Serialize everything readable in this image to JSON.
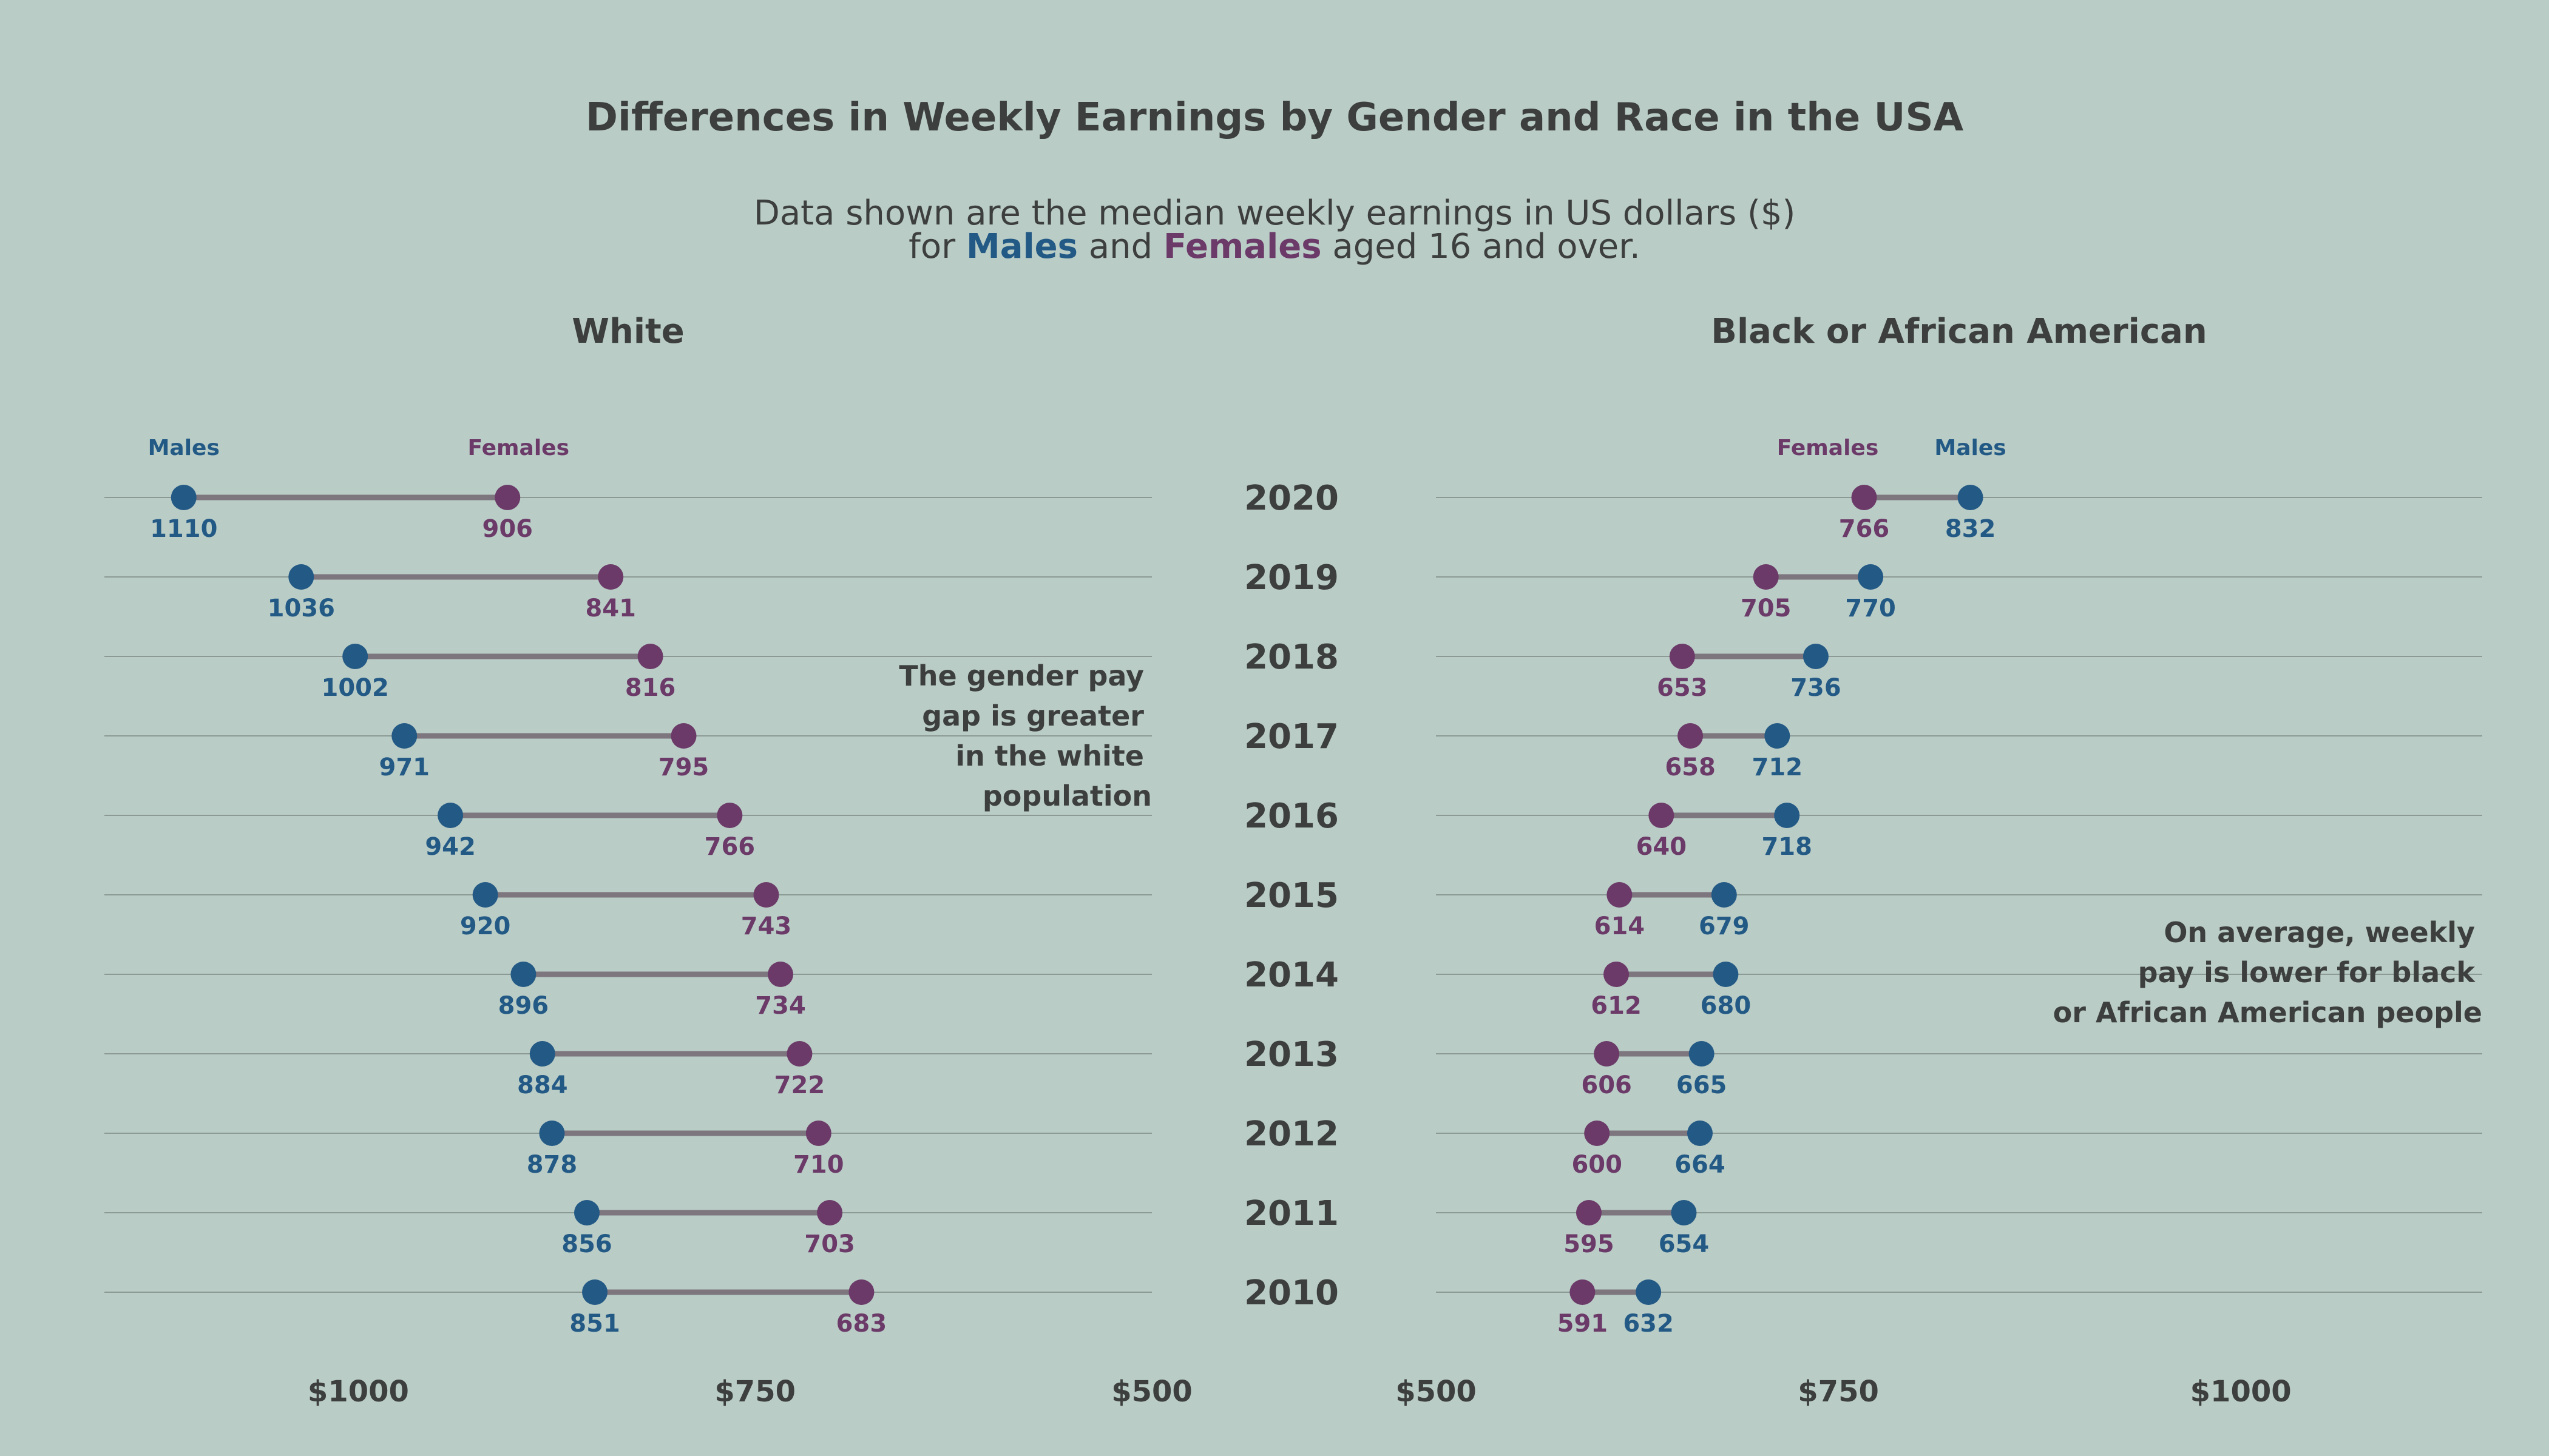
{
  "colors": {
    "males": "#235985",
    "females": "#6b3a68",
    "connector": "#7d767f",
    "grid": "#8c9995",
    "text": "#3d3f3e",
    "background": "#b9ccc6"
  },
  "chart_data": {
    "type": "dumbbell",
    "title": "Differences in Weekly Earnings by Gender and Race in the USA",
    "subtitle": {
      "line1": "Data shown are the median weekly earnings in US dollars ($)",
      "line2_pre": "for",
      "line2_males": "Males",
      "line2_and": "and",
      "line2_females": "Females",
      "line2_post": "aged 16 and over."
    },
    "years": [
      "2020",
      "2019",
      "2018",
      "2017",
      "2016",
      "2015",
      "2014",
      "2013",
      "2012",
      "2011",
      "2010"
    ],
    "legend": {
      "males": "Males",
      "females": "Females"
    },
    "panels": [
      {
        "title": "White",
        "x_reversed": true,
        "xlim": [
          500,
          1160
        ],
        "ticks": [
          {
            "value": 1000,
            "label": "$1000"
          },
          {
            "value": 750,
            "label": "$750"
          },
          {
            "value": 500,
            "label": "$500"
          }
        ],
        "males": [
          1110,
          1036,
          1002,
          971,
          942,
          920,
          896,
          884,
          878,
          856,
          851
        ],
        "females": [
          906,
          841,
          816,
          795,
          766,
          743,
          734,
          722,
          710,
          703,
          683
        ],
        "annotation": [
          "The gender pay",
          "gap is greater",
          "in the white",
          "population"
        ]
      },
      {
        "title": "Black or African American",
        "x_reversed": false,
        "xlim": [
          500,
          1150
        ],
        "ticks": [
          {
            "value": 500,
            "label": "$500"
          },
          {
            "value": 750,
            "label": "$750"
          },
          {
            "value": 1000,
            "label": "$1000"
          }
        ],
        "males": [
          832,
          770,
          736,
          712,
          718,
          679,
          680,
          665,
          664,
          654,
          632
        ],
        "females": [
          766,
          705,
          653,
          658,
          640,
          614,
          612,
          606,
          600,
          595,
          591
        ],
        "annotation": [
          "On average, weekly",
          "pay  is  lower for  black",
          "or African American people"
        ]
      }
    ]
  }
}
